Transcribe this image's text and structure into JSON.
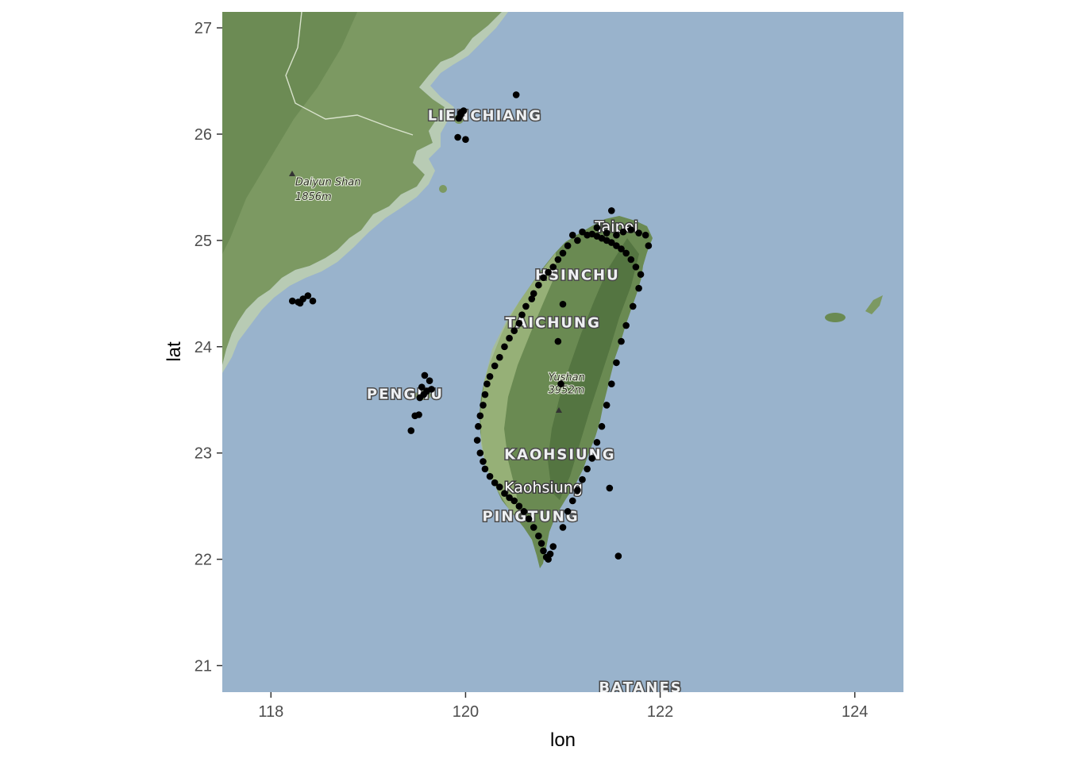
{
  "chart_data": {
    "type": "scatter",
    "title": "",
    "xlabel": "lon",
    "ylabel": "lat",
    "xlim": [
      117.5,
      124.5
    ],
    "ylim": [
      20.75,
      27.15
    ],
    "x_ticks": [
      118,
      120,
      122,
      124
    ],
    "y_ticks": [
      21,
      22,
      23,
      24,
      25,
      26,
      27
    ],
    "grid": false,
    "legend": "none",
    "background": "basemap",
    "point_color": "#000000",
    "basemap_labels": [
      {
        "text": "LIENCHIANG",
        "lon": 120.2,
        "lat": 26.13,
        "style": "region"
      },
      {
        "text": "Daiyun Shan",
        "lon": 118.25,
        "lat": 25.52,
        "style": "peak"
      },
      {
        "text": "1856m",
        "lon": 118.25,
        "lat": 25.38,
        "style": "peak"
      },
      {
        "text": "Taipei",
        "lon": 121.55,
        "lat": 25.08,
        "style": "city"
      },
      {
        "text": "HSINCHU",
        "lon": 121.15,
        "lat": 24.63,
        "style": "region"
      },
      {
        "text": "TAICHUNG",
        "lon": 120.9,
        "lat": 24.18,
        "style": "region"
      },
      {
        "text": "PENGHU",
        "lon": 119.38,
        "lat": 23.51,
        "style": "region"
      },
      {
        "text": "KAOHSIUNG",
        "lon": 120.97,
        "lat": 22.94,
        "style": "region"
      },
      {
        "text": "Kaohsiung",
        "lon": 120.8,
        "lat": 22.63,
        "style": "city"
      },
      {
        "text": "PINGTUNG",
        "lon": 120.67,
        "lat": 22.36,
        "style": "region"
      },
      {
        "text": "BATANES",
        "lon": 121.8,
        "lat": 20.75,
        "style": "region"
      },
      {
        "text": "Yushan",
        "lon": 120.85,
        "lat": 23.68,
        "style": "peak"
      },
      {
        "text": "3952m",
        "lon": 120.85,
        "lat": 23.56,
        "style": "peak"
      }
    ],
    "series": [
      {
        "x": [
          120.52,
          119.95,
          119.98,
          119.93,
          120.0,
          119.92,
          119.95,
          118.22,
          118.28,
          118.33,
          118.38,
          118.43,
          118.3,
          119.58,
          119.63,
          119.55,
          119.6,
          119.53,
          119.57,
          119.65,
          119.48,
          119.52,
          119.44,
          121.5,
          121.35,
          121.45,
          121.55,
          121.62,
          121.7,
          121.78,
          121.85,
          121.88,
          121.25,
          121.15,
          121.05,
          121.0,
          120.95,
          120.9,
          120.85,
          120.8,
          120.75,
          120.7,
          120.68,
          120.62,
          120.58,
          120.55,
          120.5,
          120.45,
          120.4,
          120.35,
          120.3,
          120.25,
          120.22,
          120.2,
          120.18,
          120.15,
          120.13,
          120.12,
          120.15,
          120.18,
          120.2,
          120.25,
          120.3,
          120.35,
          120.4,
          120.45,
          120.5,
          120.55,
          120.6,
          120.65,
          120.7,
          120.75,
          120.78,
          120.8,
          120.83,
          120.85,
          120.87,
          120.9,
          121.0,
          121.05,
          121.1,
          121.15,
          121.2,
          121.25,
          121.3,
          121.35,
          121.4,
          121.45,
          121.5,
          121.55,
          121.6,
          121.65,
          121.72,
          121.78,
          121.8,
          121.75,
          121.7,
          121.65,
          121.6,
          121.55,
          121.5,
          121.45,
          121.4,
          121.35,
          121.3,
          121.2,
          121.1,
          121.0,
          120.95,
          120.98,
          121.48,
          121.57
        ],
        "y": [
          26.37,
          26.2,
          26.22,
          26.15,
          25.95,
          25.97,
          26.18,
          24.43,
          24.42,
          24.45,
          24.48,
          24.43,
          24.41,
          23.73,
          23.68,
          23.62,
          23.58,
          23.52,
          23.55,
          23.6,
          23.35,
          23.36,
          23.21,
          25.28,
          25.12,
          25.07,
          25.05,
          25.08,
          25.1,
          25.07,
          25.05,
          24.95,
          25.05,
          25.0,
          24.95,
          24.88,
          24.82,
          24.75,
          24.7,
          24.65,
          24.58,
          24.5,
          24.45,
          24.38,
          24.3,
          24.22,
          24.15,
          24.08,
          24.0,
          23.9,
          23.82,
          23.72,
          23.65,
          23.55,
          23.45,
          23.35,
          23.25,
          23.12,
          23.0,
          22.92,
          22.85,
          22.78,
          22.72,
          22.68,
          22.62,
          22.58,
          22.55,
          22.5,
          22.45,
          22.38,
          22.3,
          22.22,
          22.15,
          22.08,
          22.02,
          22.0,
          22.05,
          22.12,
          22.3,
          22.45,
          22.55,
          22.65,
          22.75,
          22.85,
          22.95,
          23.1,
          23.25,
          23.45,
          23.65,
          23.85,
          24.05,
          24.2,
          24.38,
          24.55,
          24.68,
          24.75,
          24.82,
          24.88,
          24.92,
          24.95,
          24.98,
          25.0,
          25.02,
          25.04,
          25.06,
          25.08,
          25.05,
          24.4,
          24.05,
          23.65,
          22.67,
          22.03
        ]
      }
    ]
  }
}
